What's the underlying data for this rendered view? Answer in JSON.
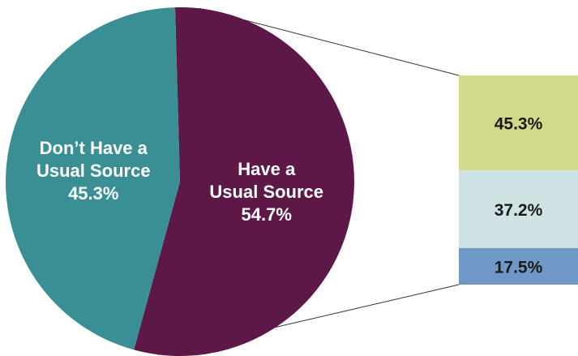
{
  "chart_data": {
    "type": "pie",
    "slices": [
      {
        "value": 54.7,
        "lines": [
          "Have a",
          "Usual Source",
          "54.7%"
        ],
        "color": "#5e1848"
      },
      {
        "value": 45.3,
        "lines": [
          "Don’t Have a",
          "Usual Source",
          "45.3%"
        ],
        "color": "#3a8f95"
      }
    ],
    "breakdown": {
      "parent_slice": 0,
      "segments": [
        {
          "value": 45.3,
          "label": "45.3%",
          "color": "#d3d98a"
        },
        {
          "value": 37.2,
          "label": "37.2%",
          "color": "#cfe3e5"
        },
        {
          "value": 17.5,
          "label": "17.5%",
          "color": "#6f98c7"
        }
      ]
    }
  }
}
